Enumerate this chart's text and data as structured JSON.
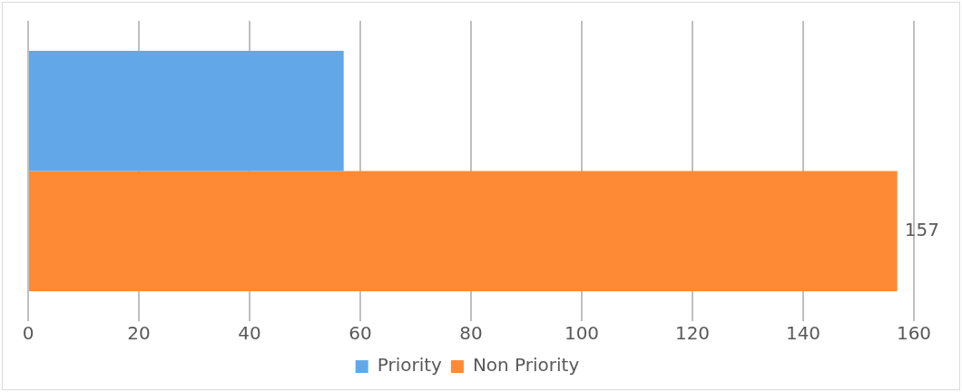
{
  "chart_data": {
    "type": "bar",
    "orientation": "horizontal",
    "categories": [
      null
    ],
    "series": [
      {
        "name": "Priority",
        "color": "#62a8e8",
        "values": [
          57
        ],
        "value_labels": [
          null
        ]
      },
      {
        "name": "Non Priority",
        "color": "#fe8a35",
        "values": [
          157
        ],
        "value_labels": [
          "157"
        ]
      }
    ],
    "xlim": [
      0,
      160
    ],
    "xticks": [
      0,
      20,
      40,
      60,
      80,
      100,
      120,
      140,
      160
    ],
    "grid": "x",
    "legend": "bottom"
  }
}
